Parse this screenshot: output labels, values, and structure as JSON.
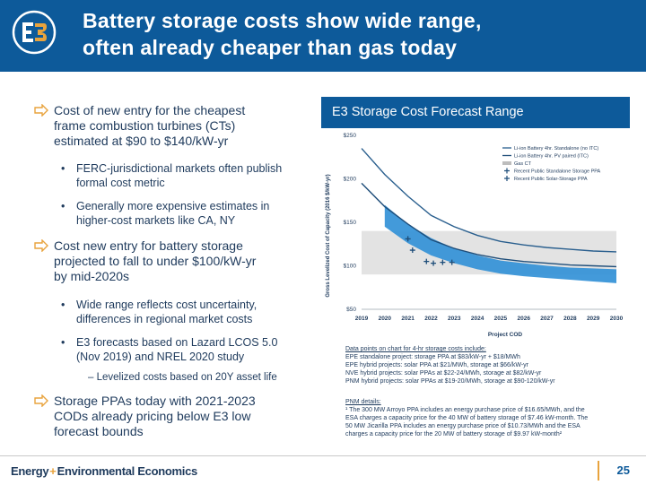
{
  "title": {
    "line1": "Battery storage costs show wide range,",
    "line2": "often already cheaper than gas today"
  },
  "left": {
    "bullet1": {
      "line1": "Cost of new entry for the cheapest",
      "line2": "frame combustion turbines (CTs)",
      "line3": "estimated at $90 to $140/kW-yr"
    },
    "sub1": {
      "line1": "FERC-jurisdictional markets often publish",
      "line2": "formal cost metric"
    },
    "sub2": {
      "line1": "Generally more expensive estimates in",
      "line2": "higher-cost markets like CA, NY"
    },
    "bullet2": {
      "line1": "Cost new entry for battery storage",
      "line2": "projected to fall to under $100/kW-yr",
      "line3": "by mid-2020s"
    },
    "sub3": {
      "line1": "Wide range reflects cost uncertainty,",
      "line2": "differences in regional market costs"
    },
    "sub4": {
      "line1": "E3 forecasts based on Lazard LCOS 5.0",
      "line2": "(Nov 2019) and NREL 2020 study"
    },
    "subsub1": "– Levelized costs based on 20Y asset life",
    "bullet3": {
      "line1": "Storage PPAs today with 2021-2023",
      "line2": "CODs already pricing below E3 low",
      "line3": "forecast bounds"
    }
  },
  "chart_header": "E3 Storage Cost Forecast Range",
  "chart_data": {
    "type": "line",
    "ylabel": "Gross Levelized Cost of Capacity (2016 $/kW-yr)",
    "xlabel": "Project COD",
    "ylim": [
      50,
      250
    ],
    "y_ticks": [
      "$250",
      "$200",
      "$150",
      "$100",
      "$50"
    ],
    "x_ticks": [
      "2019",
      "2020",
      "2021",
      "2022",
      "2023",
      "2024",
      "2025",
      "2026",
      "2027",
      "2028",
      "2029",
      "2030"
    ],
    "gas_ct_band": [
      90,
      140
    ],
    "series": [
      {
        "name": "Li-ion Battery 4hr. Standalone (no ITC)",
        "x": [
          2019,
          2020,
          2021,
          2022,
          2023,
          2024,
          2025,
          2026,
          2027,
          2028,
          2029,
          2030
        ],
        "values": [
          235,
          205,
          180,
          158,
          145,
          135,
          128,
          124,
          121,
          119,
          117,
          116
        ]
      },
      {
        "name": "Li-ion Battery 4hr. PV paired (ITC)",
        "x": [
          2019,
          2020,
          2021,
          2022,
          2023,
          2024,
          2025,
          2026,
          2027,
          2028,
          2029,
          2030
        ],
        "values": [
          195,
          168,
          148,
          130,
          120,
          113,
          108,
          105,
          103,
          101,
          100,
          99
        ]
      },
      {
        "name": "Gas CT",
        "x": [
          2019,
          2030
        ],
        "values": [
          138,
          138
        ]
      }
    ],
    "range_band": {
      "x": [
        2020,
        2021,
        2022,
        2023,
        2024,
        2025,
        2026,
        2027,
        2028,
        2029,
        2030
      ],
      "low": [
        145,
        126,
        112,
        103,
        96,
        91,
        88,
        86,
        84,
        82,
        80
      ],
      "high": [
        170,
        148,
        132,
        120,
        112,
        106,
        103,
        100,
        98,
        97,
        96
      ]
    },
    "points": [
      {
        "name": "Recent Public Standalone Storage PPA",
        "x": 2021,
        "y": 131
      },
      {
        "name": "Recent Public Solar+Storage PPA",
        "x": 2021.2,
        "y": 118
      },
      {
        "name": "Recent Public Solar+Storage PPA",
        "x": 2021.8,
        "y": 105
      },
      {
        "name": "Recent Public Solar+Storage PPA",
        "x": 2022.1,
        "y": 103
      },
      {
        "name": "Recent Public Solar+Storage PPA",
        "x": 2022.5,
        "y": 104
      },
      {
        "name": "Recent Public Solar+Storage PPA",
        "x": 2022.9,
        "y": 104
      }
    ],
    "legend": [
      "Li-ion Battery 4hr. Standalone (no ITC)",
      "Li-ion Battery 4hr. PV paired (ITC)",
      "Gas CT",
      "Recent Public Standalone Storage PPA",
      "Recent Public Solar-Storage PPA"
    ],
    "colors": {
      "standalone": "#2a5f8e",
      "pv_paired": "#1f4e7a",
      "band": "#2f8fd6",
      "gas": "#e3e3e3",
      "points": "#1f4e7a"
    }
  },
  "notes1": {
    "heading": "Data points on chart for 4-hr storage costs include:",
    "lines": [
      "EPE standalone project: storage PPA at $83/kW-yr + $18/MWh",
      "EPE hybrid projects: solar PPA at $21/MWh, storage at $66/kW-yr",
      "NVE hybrid projects: solar PPAs at $22-24/MWh, storage at $82/kW-yr",
      "PNM hybrid projects: solar PPAs at $19-20/MWh, storage at $90-120/kW-yr"
    ]
  },
  "notes2": {
    "heading": "PNM details:",
    "lines": [
      "¹ The 300 MW Arroyo PPA includes an energy purchase price of $16.65/MWh, and the",
      "ESA charges a capacity price for the 40 MW of battery storage of $7.46 kW-month. The",
      "50 MW Jicarilla PPA includes an energy purchase price of $10.73/MWh and the ESA",
      "charges a capacity price for the 20 MW of battery storage of $9.97 kW-month²"
    ]
  },
  "footer": {
    "brand_left": "Energy",
    "plus": "+",
    "brand_right": "Environmental Economics",
    "page": "25"
  }
}
